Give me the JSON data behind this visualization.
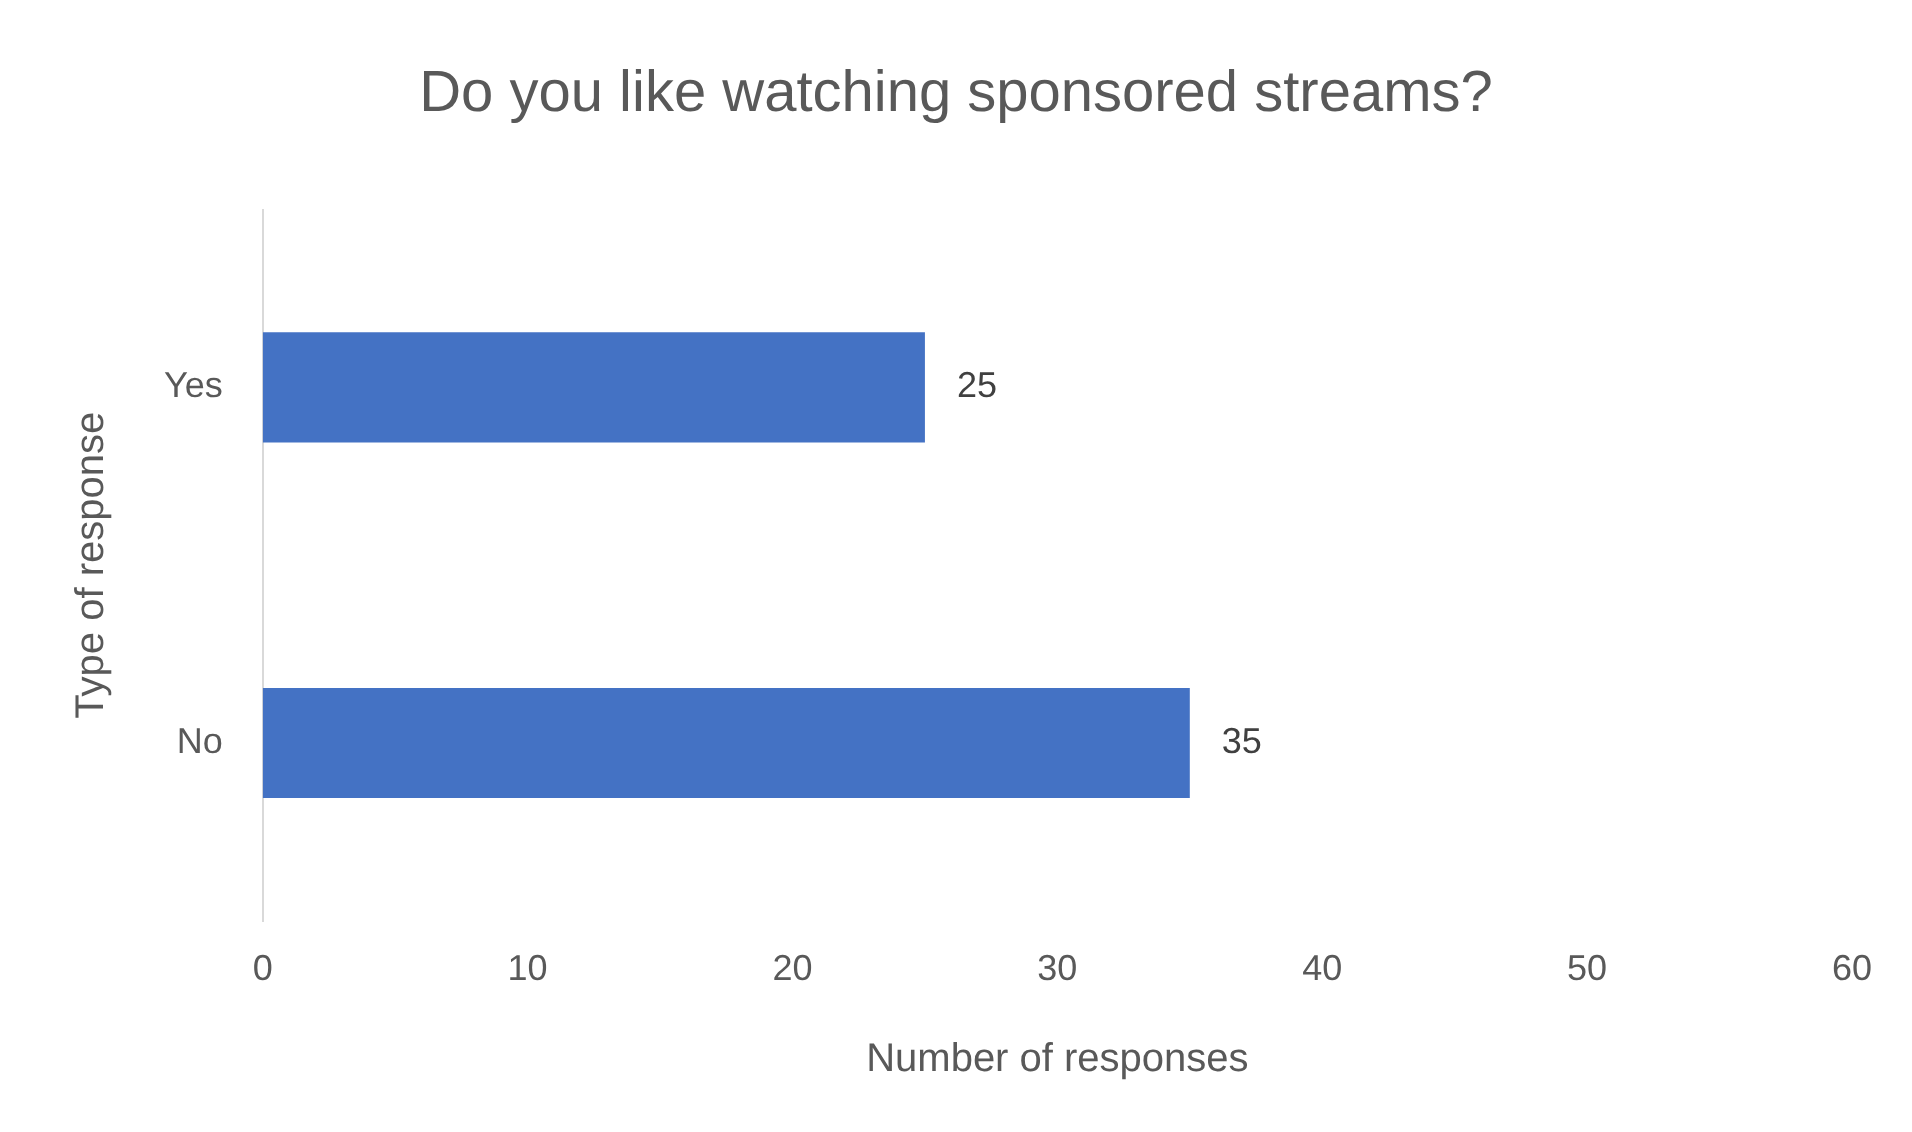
{
  "chart_data": {
    "type": "bar",
    "orientation": "horizontal",
    "title": "Do you like watching sponsored streams?",
    "xlabel": "Number of responses",
    "ylabel": "Type of response",
    "categories": [
      "Yes",
      "No"
    ],
    "values": [
      25,
      35
    ],
    "color": "#4472c4",
    "xlim": [
      0,
      60
    ],
    "xticks": [
      0,
      10,
      20,
      30,
      40,
      50,
      60
    ],
    "grid": false,
    "legend": false,
    "data_labels": true
  }
}
